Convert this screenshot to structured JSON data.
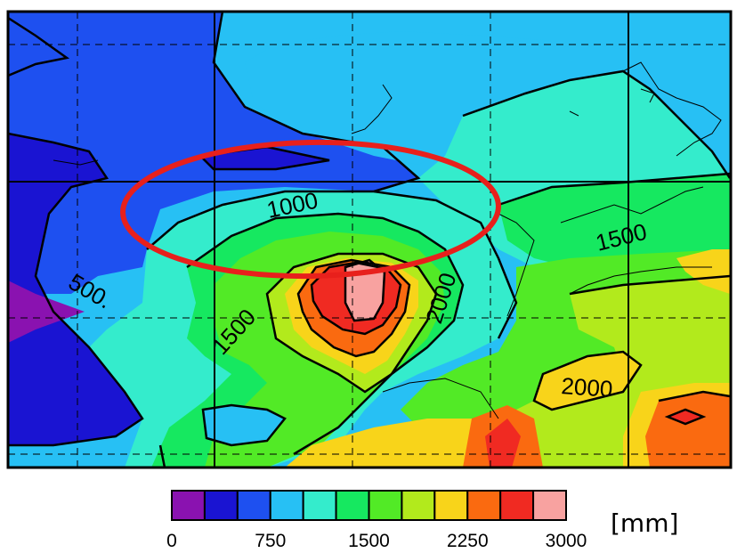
{
  "map": {
    "contour_labels": [
      "500.",
      "1000",
      "1500",
      "1500",
      "2000",
      "2000"
    ],
    "highlight": {
      "shape": "ellipse",
      "color": "#e8201c"
    }
  },
  "colorbar": {
    "colors": [
      "#8a12b0",
      "#1a14d2",
      "#1e50f0",
      "#27c0f4",
      "#34eccc",
      "#16e860",
      "#52ea26",
      "#b2ea1c",
      "#f8d41a",
      "#fa6a10",
      "#f02a22",
      "#f8a2a0"
    ],
    "tick_labels": [
      "0",
      "750",
      "1500",
      "2250",
      "3000"
    ],
    "unit": "[mm]"
  }
}
